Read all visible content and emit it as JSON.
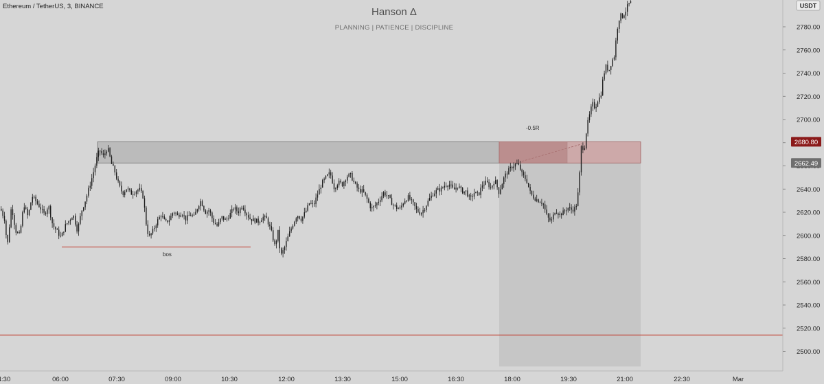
{
  "header": {
    "symbol_title": "Ethereum / TetherUS, 3, BINANCE",
    "currency_badge": "USDT"
  },
  "watermark": {
    "title": "Hanson Δ",
    "subtitle": "PLANNING  |  PATIENCE   |   DISCIPLINE"
  },
  "colors": {
    "background": "#d6d6d6",
    "candle": "#1e1e1e",
    "supply_zone_fill": "#b4b4b4",
    "supply_zone_border": "#707070",
    "red_zone_fill": "#c99a9a",
    "red_line": "#c0392b",
    "shade_fill": "#c6c6c6",
    "badge_red": "#8b1a1a",
    "badge_gray": "#6f6f6f"
  },
  "chart_data": {
    "type": "candlestick",
    "title": "Ethereum / TetherUS, 3, BINANCE",
    "ylim": [
      2487,
      2802
    ],
    "y_ticks": [
      "2500.00",
      "2520.00",
      "2540.00",
      "2560.00",
      "2580.00",
      "2600.00",
      "2620.00",
      "2640.00",
      "2660.00",
      "2680.00",
      "2700.00",
      "2720.00",
      "2740.00",
      "2760.00",
      "2780.00"
    ],
    "x_ticks": [
      "4:30",
      "06:00",
      "07:30",
      "09:00",
      "10:30",
      "12:00",
      "13:30",
      "15:00",
      "16:30",
      "18:00",
      "19:30",
      "21:00",
      "22:30",
      "Mar"
    ],
    "price_labels": [
      {
        "value": 2680.8,
        "label": "2680.80",
        "color": "red"
      },
      {
        "value": 2662.49,
        "label": "2662.49",
        "color": "gray"
      }
    ],
    "annotations": [
      {
        "text": "bos",
        "x_tick": "09:00",
        "y": 2582
      },
      {
        "text": "-0.5R",
        "x_tick": "18:00",
        "y": 2691
      }
    ],
    "zones": [
      {
        "kind": "supply",
        "y_top": 2680.8,
        "y_bottom": 2662.5
      },
      {
        "kind": "stop",
        "y_top": 2680.8,
        "y_bottom": 2662.5
      },
      {
        "kind": "target-area",
        "y_top": 2662.5,
        "y_bottom": 2487
      }
    ],
    "horizontal_lines": [
      {
        "kind": "bos",
        "y": 2590
      },
      {
        "kind": "target",
        "y": 2514
      }
    ],
    "price_path": [
      [
        0,
        2623
      ],
      [
        6,
        2614
      ],
      [
        10,
        2590
      ],
      [
        16,
        2626
      ],
      [
        22,
        2604
      ],
      [
        28,
        2600
      ],
      [
        34,
        2627
      ],
      [
        40,
        2616
      ],
      [
        46,
        2634
      ],
      [
        52,
        2629
      ],
      [
        58,
        2624
      ],
      [
        64,
        2618
      ],
      [
        70,
        2626
      ],
      [
        76,
        2609
      ],
      [
        82,
        2604
      ],
      [
        88,
        2598
      ],
      [
        94,
        2608
      ],
      [
        100,
        2613
      ],
      [
        106,
        2618
      ],
      [
        112,
        2604
      ],
      [
        118,
        2621
      ],
      [
        124,
        2631
      ],
      [
        130,
        2643
      ],
      [
        136,
        2656
      ],
      [
        140,
        2666
      ],
      [
        144,
        2674
      ],
      [
        150,
        2668
      ],
      [
        156,
        2676
      ],
      [
        162,
        2661
      ],
      [
        166,
        2656
      ],
      [
        172,
        2644
      ],
      [
        178,
        2636
      ],
      [
        184,
        2641
      ],
      [
        190,
        2636
      ],
      [
        196,
        2638
      ],
      [
        202,
        2640
      ],
      [
        208,
        2633
      ],
      [
        212,
        2611
      ],
      [
        216,
        2598
      ],
      [
        222,
        2604
      ],
      [
        228,
        2612
      ],
      [
        234,
        2618
      ],
      [
        240,
        2611
      ],
      [
        246,
        2614
      ],
      [
        252,
        2621
      ],
      [
        258,
        2617
      ],
      [
        264,
        2620
      ],
      [
        270,
        2614
      ],
      [
        276,
        2618
      ],
      [
        282,
        2616
      ],
      [
        288,
        2626
      ],
      [
        292,
        2630
      ],
      [
        298,
        2620
      ],
      [
        304,
        2622
      ],
      [
        310,
        2612
      ],
      [
        316,
        2608
      ],
      [
        322,
        2616
      ],
      [
        328,
        2613
      ],
      [
        334,
        2618
      ],
      [
        340,
        2624
      ],
      [
        346,
        2620
      ],
      [
        352,
        2626
      ],
      [
        358,
        2619
      ],
      [
        364,
        2614
      ],
      [
        370,
        2613
      ],
      [
        376,
        2612
      ],
      [
        382,
        2616
      ],
      [
        388,
        2614
      ],
      [
        394,
        2604
      ],
      [
        400,
        2590
      ],
      [
        404,
        2604
      ],
      [
        408,
        2582
      ],
      [
        414,
        2590
      ],
      [
        420,
        2601
      ],
      [
        426,
        2610
      ],
      [
        432,
        2618
      ],
      [
        438,
        2614
      ],
      [
        444,
        2620
      ],
      [
        450,
        2628
      ],
      [
        456,
        2626
      ],
      [
        462,
        2636
      ],
      [
        468,
        2645
      ],
      [
        474,
        2650
      ],
      [
        480,
        2654
      ],
      [
        486,
        2641
      ],
      [
        492,
        2646
      ],
      [
        498,
        2644
      ],
      [
        504,
        2651
      ],
      [
        510,
        2652
      ],
      [
        516,
        2644
      ],
      [
        522,
        2639
      ],
      [
        528,
        2638
      ],
      [
        534,
        2631
      ],
      [
        540,
        2623
      ],
      [
        546,
        2626
      ],
      [
        552,
        2631
      ],
      [
        558,
        2637
      ],
      [
        564,
        2634
      ],
      [
        570,
        2628
      ],
      [
        576,
        2624
      ],
      [
        582,
        2623
      ],
      [
        588,
        2630
      ],
      [
        594,
        2633
      ],
      [
        600,
        2628
      ],
      [
        606,
        2622
      ],
      [
        612,
        2619
      ],
      [
        618,
        2624
      ],
      [
        624,
        2631
      ],
      [
        630,
        2636
      ],
      [
        636,
        2639
      ],
      [
        642,
        2640
      ],
      [
        648,
        2644
      ],
      [
        654,
        2644
      ],
      [
        660,
        2639
      ],
      [
        666,
        2643
      ],
      [
        672,
        2638
      ],
      [
        678,
        2638
      ],
      [
        684,
        2631
      ],
      [
        690,
        2637
      ],
      [
        696,
        2635
      ],
      [
        702,
        2644
      ],
      [
        708,
        2646
      ],
      [
        714,
        2641
      ],
      [
        720,
        2648
      ],
      [
        726,
        2637
      ],
      [
        730,
        2644
      ],
      [
        734,
        2651
      ],
      [
        740,
        2656
      ],
      [
        746,
        2660
      ],
      [
        752,
        2662
      ],
      [
        756,
        2659
      ],
      [
        760,
        2652
      ],
      [
        766,
        2648
      ],
      [
        772,
        2636
      ],
      [
        778,
        2632
      ],
      [
        784,
        2630
      ],
      [
        790,
        2628
      ],
      [
        796,
        2616
      ],
      [
        802,
        2612
      ],
      [
        808,
        2622
      ],
      [
        814,
        2618
      ],
      [
        820,
        2620
      ],
      [
        826,
        2624
      ],
      [
        832,
        2622
      ],
      [
        838,
        2624
      ],
      [
        842,
        2640
      ],
      [
        846,
        2678
      ],
      [
        850,
        2674
      ],
      [
        854,
        2694
      ],
      [
        858,
        2704
      ],
      [
        862,
        2714
      ],
      [
        866,
        2710
      ],
      [
        870,
        2717
      ],
      [
        874,
        2720
      ],
      [
        878,
        2738
      ],
      [
        882,
        2746
      ],
      [
        886,
        2742
      ],
      [
        890,
        2750
      ],
      [
        894,
        2755
      ],
      [
        898,
        2778
      ],
      [
        902,
        2790
      ],
      [
        906,
        2789
      ],
      [
        910,
        2793
      ],
      [
        914,
        2799
      ],
      [
        920,
        2802
      ]
    ]
  }
}
